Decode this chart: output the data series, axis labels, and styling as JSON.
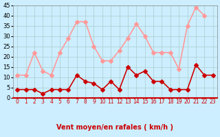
{
  "hours": [
    0,
    1,
    2,
    3,
    4,
    5,
    6,
    7,
    8,
    9,
    10,
    11,
    12,
    13,
    14,
    15,
    16,
    17,
    18,
    19,
    20,
    21,
    22,
    23
  ],
  "vent_moyen": [
    4,
    4,
    4,
    2,
    4,
    4,
    4,
    11,
    8,
    7,
    4,
    8,
    4,
    15,
    11,
    13,
    8,
    8,
    4,
    4,
    4,
    16,
    11,
    11
  ],
  "rafales": [
    11,
    11,
    22,
    13,
    11,
    22,
    29,
    37,
    37,
    25,
    18,
    18,
    23,
    29,
    36,
    30,
    22,
    22,
    22,
    14,
    35,
    44,
    40,
    null
  ],
  "color_moyen": "#cc0000",
  "color_rafales": "#ff9999",
  "bg_color": "#cceeff",
  "grid_color": "#aacccc",
  "xlabel": "Vent moyen/en rafales ( km/h )",
  "ylabel": "",
  "ylim": [
    0,
    45
  ],
  "yticks": [
    0,
    5,
    10,
    15,
    20,
    25,
    30,
    35,
    40,
    45
  ],
  "title": "",
  "marker": "D",
  "markersize": 3,
  "linewidth": 1.2
}
